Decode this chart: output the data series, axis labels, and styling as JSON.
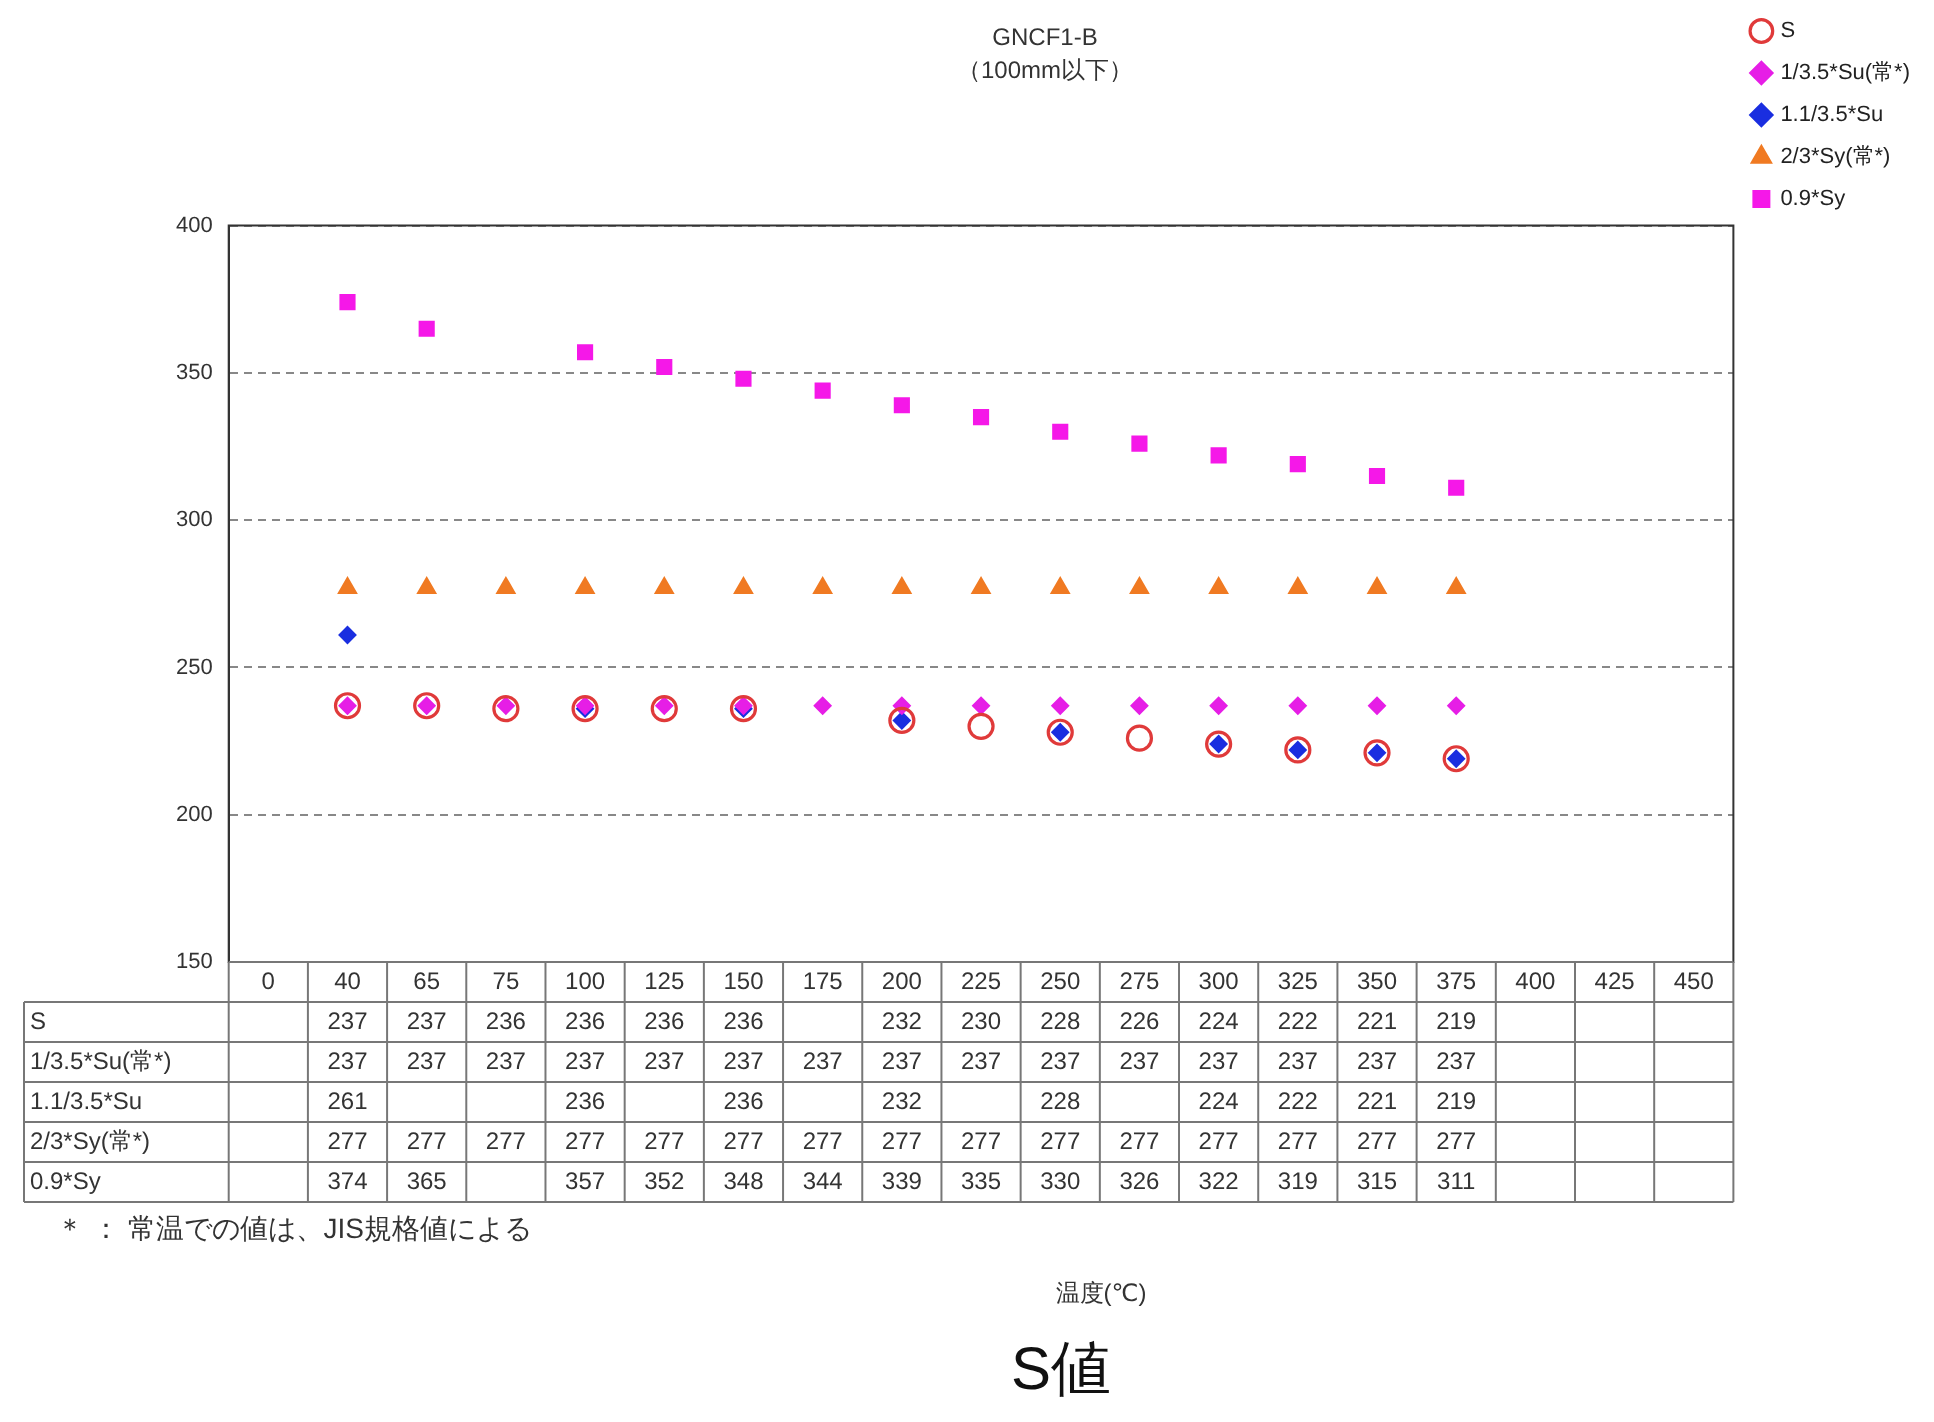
{
  "chart_data": {
    "type": "scatter",
    "title": "GNCF1-B",
    "subtitle": "（100mm以下）",
    "categories": [
      "0",
      "40",
      "65",
      "75",
      "100",
      "125",
      "150",
      "175",
      "200",
      "225",
      "250",
      "275",
      "300",
      "325",
      "350",
      "375",
      "400",
      "425",
      "450"
    ],
    "ylim": [
      150,
      400
    ],
    "yticks": [
      150,
      200,
      250,
      300,
      350,
      400
    ],
    "grid": "y",
    "legend": "top right",
    "data_labels": true,
    "series": [
      {
        "name": "S",
        "color": "#e03a3a",
        "marker": "circle",
        "values": [
          null,
          237,
          237,
          236,
          236,
          236,
          236,
          null,
          232,
          230,
          228,
          226,
          224,
          222,
          221,
          219,
          null,
          null,
          null
        ]
      },
      {
        "name": "1/3.5*Su(常*)",
        "color": "#e61ee6",
        "marker": "diamond",
        "values": [
          null,
          237,
          237,
          237,
          237,
          237,
          237,
          237,
          237,
          237,
          237,
          237,
          237,
          237,
          237,
          237,
          null,
          null,
          null
        ]
      },
      {
        "name": "1.1/3.5*Su",
        "color": "#1a2ee0",
        "marker": "diamond",
        "values": [
          null,
          261,
          null,
          null,
          236,
          null,
          236,
          null,
          232,
          null,
          228,
          null,
          224,
          222,
          221,
          219,
          null,
          null,
          null
        ]
      },
      {
        "name": "2/3*Sy(常*)",
        "color": "#f07a22",
        "marker": "triangle",
        "values": [
          null,
          277,
          277,
          277,
          277,
          277,
          277,
          277,
          277,
          277,
          277,
          277,
          277,
          277,
          277,
          277,
          null,
          null,
          null
        ]
      },
      {
        "name": "0.9*Sy",
        "color": "#f518e8",
        "marker": "square",
        "values": [
          null,
          374,
          365,
          null,
          357,
          352,
          348,
          344,
          339,
          335,
          330,
          326,
          322,
          319,
          315,
          311,
          null,
          null,
          null
        ]
      }
    ],
    "annotations": [
      "＊ ： 常温での値は、JIS規格値による",
      "温度(℃)",
      "S値"
    ]
  }
}
